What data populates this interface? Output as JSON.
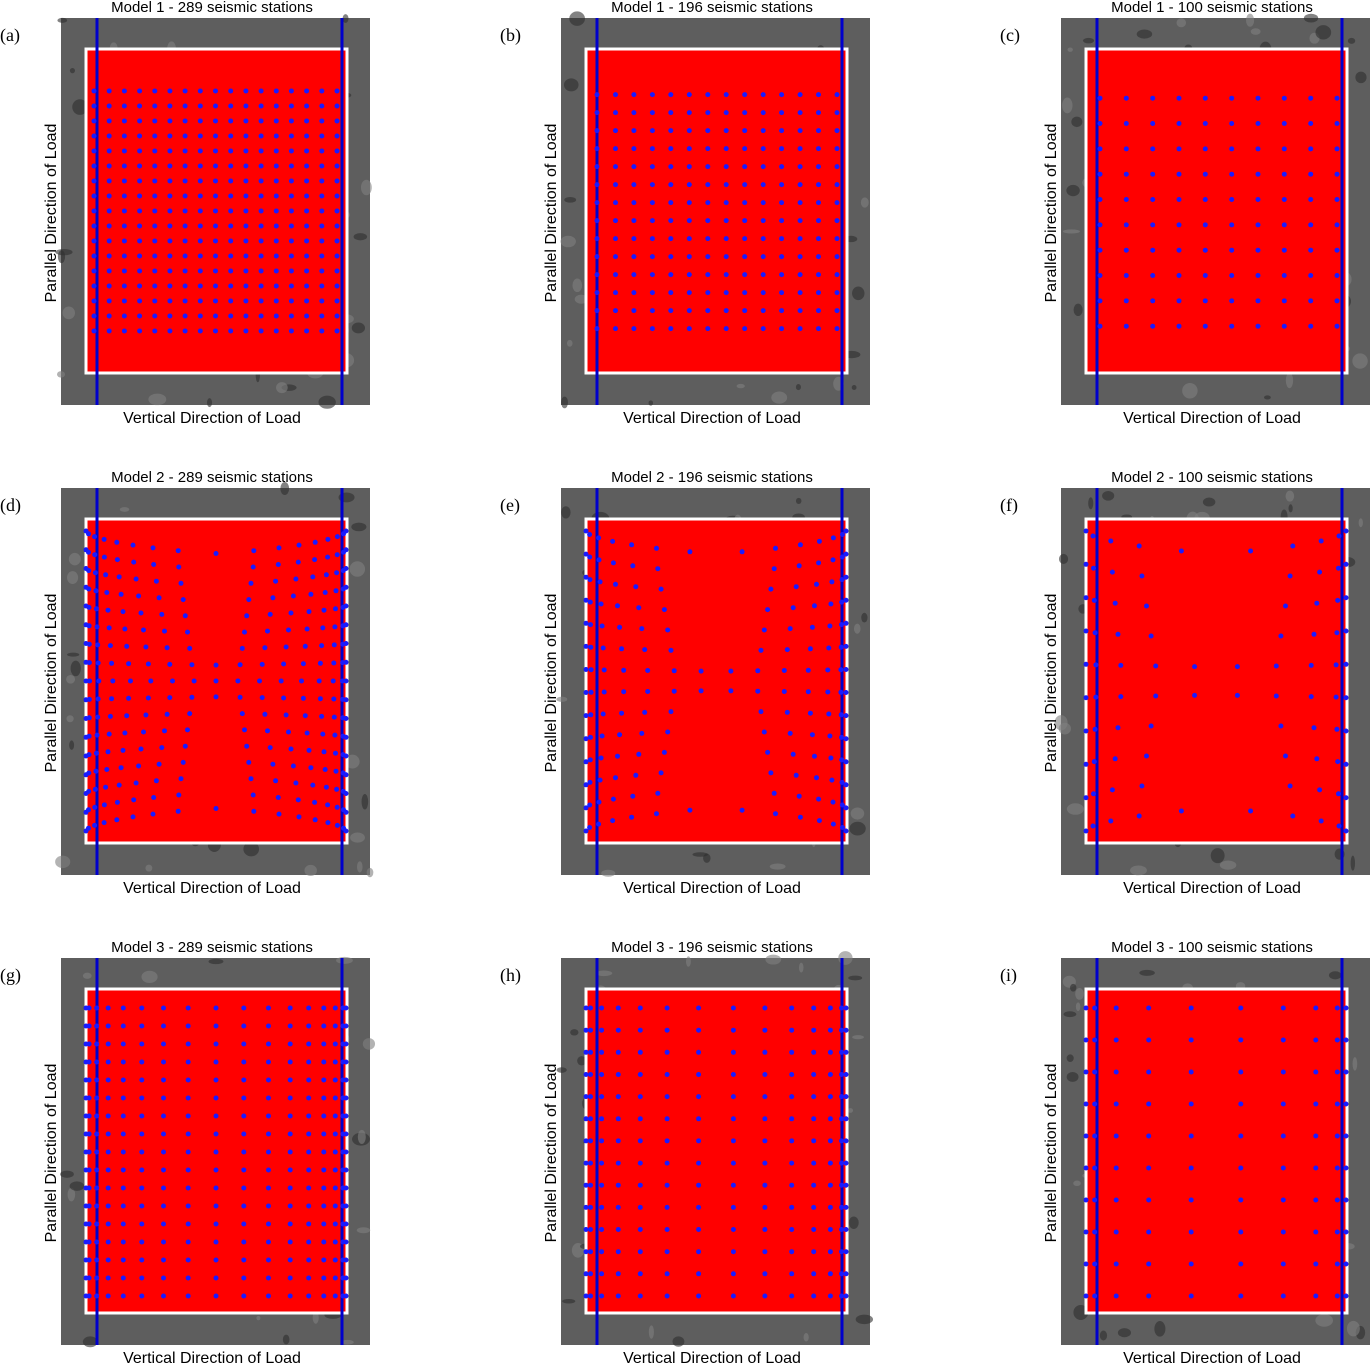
{
  "panels": [
    {
      "label": "(a)",
      "title": "Model 1 - 289 seismic stations",
      "xlabel": "Vertical Direction of Load",
      "ylabel": "Parallel Direction of Load"
    },
    {
      "label": "(b)",
      "title": "Model 1 - 196 seismic stations",
      "xlabel": "Vertical Direction of Load",
      "ylabel": "Parallel Direction of Load"
    },
    {
      "label": "(c)",
      "title": "Model 1 - 100 seismic stations",
      "xlabel": "Vertical Direction of Load",
      "ylabel": "Parallel Direction of Load"
    },
    {
      "label": "(d)",
      "title": "Model 2 - 289 seismic stations",
      "xlabel": "Vertical Direction of Load",
      "ylabel": "Parallel Direction of Load"
    },
    {
      "label": "(e)",
      "title": "Model 2 - 196 seismic stations",
      "xlabel": "Vertical Direction of Load",
      "ylabel": "Parallel Direction of Load"
    },
    {
      "label": "(f)",
      "title": "Model 2 - 100 seismic stations",
      "xlabel": "Vertical Direction of Load",
      "ylabel": "Parallel Direction of Load"
    },
    {
      "label": "(g)",
      "title": "Model 3 - 289 seismic stations",
      "xlabel": "Vertical Direction of Load",
      "ylabel": "Parallel Direction of Load"
    },
    {
      "label": "(h)",
      "title": "Model 3 - 196 seismic stations",
      "xlabel": "Vertical Direction of Load",
      "ylabel": "Parallel Direction of Load"
    },
    {
      "label": "(i)",
      "title": "Model 3 - 100 seismic stations",
      "xlabel": "Vertical Direction of Load",
      "ylabel": "Parallel Direction of Load"
    }
  ]
}
